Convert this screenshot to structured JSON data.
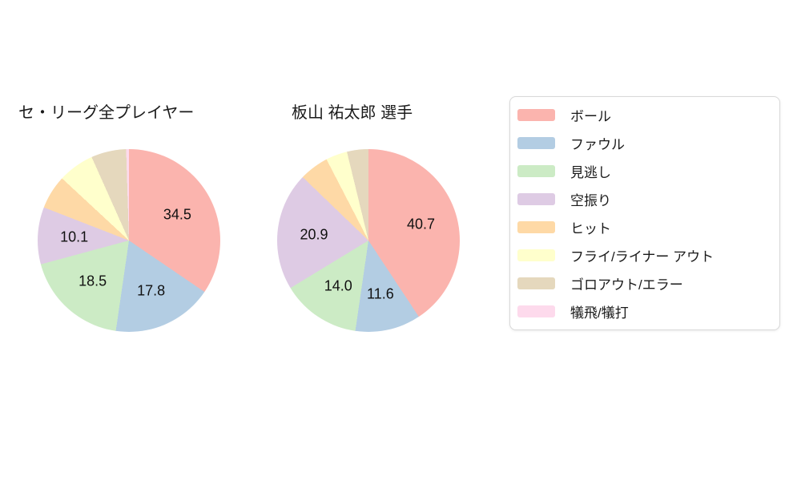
{
  "page": {
    "background": "#ffffff"
  },
  "chart_data": [
    {
      "type": "pie",
      "title": "セ・リーグ全プレイヤー",
      "categories": [
        "ボール",
        "ファウル",
        "見逃し",
        "空振り",
        "ヒット",
        "フライ/ライナー アウト",
        "ゴロアウト/エラー",
        "犠飛/犠打"
      ],
      "values": [
        34.5,
        17.8,
        18.5,
        10.1,
        6.0,
        6.4,
        6.2,
        0.5
      ],
      "colors": [
        "#fbb4ae",
        "#b3cde3",
        "#ccebc5",
        "#decbe4",
        "#fed9a6",
        "#ffffcc",
        "#e5d8bd",
        "#fddaec"
      ],
      "shown_value_labels": [
        "34.5",
        "17.8",
        "18.5",
        "10.1"
      ],
      "value_label_min": 10,
      "start_angle": "top",
      "direction": "clockwise",
      "legend_position": "right"
    },
    {
      "type": "pie",
      "title": "板山 祐太郎 選手",
      "categories": [
        "ボール",
        "ファウル",
        "見逃し",
        "空振り",
        "ヒット",
        "フライ/ライナー アウト",
        "ゴロアウト/エラー",
        "犠飛/犠打"
      ],
      "values": [
        40.7,
        11.6,
        14.0,
        20.9,
        5.2,
        3.8,
        3.8,
        0
      ],
      "colors": [
        "#fbb4ae",
        "#b3cde3",
        "#ccebc5",
        "#decbe4",
        "#fed9a6",
        "#ffffcc",
        "#e5d8bd",
        "#fddaec"
      ],
      "shown_value_labels": [
        "40.7",
        "11.6",
        "14.0",
        "20.9"
      ],
      "value_label_min": 10,
      "start_angle": "top",
      "direction": "clockwise",
      "legend_position": "right"
    }
  ],
  "legend": {
    "items": [
      {
        "label": "ボール",
        "color": "#fbb4ae"
      },
      {
        "label": "ファウル",
        "color": "#b3cde3"
      },
      {
        "label": "見逃し",
        "color": "#ccebc5"
      },
      {
        "label": "空振り",
        "color": "#decbe4"
      },
      {
        "label": "ヒット",
        "color": "#fed9a6"
      },
      {
        "label": "フライ/ライナー アウト",
        "color": "#ffffcc"
      },
      {
        "label": "ゴロアウト/エラー",
        "color": "#e5d8bd"
      },
      {
        "label": "犠飛/犠打",
        "color": "#fddaec"
      }
    ]
  }
}
